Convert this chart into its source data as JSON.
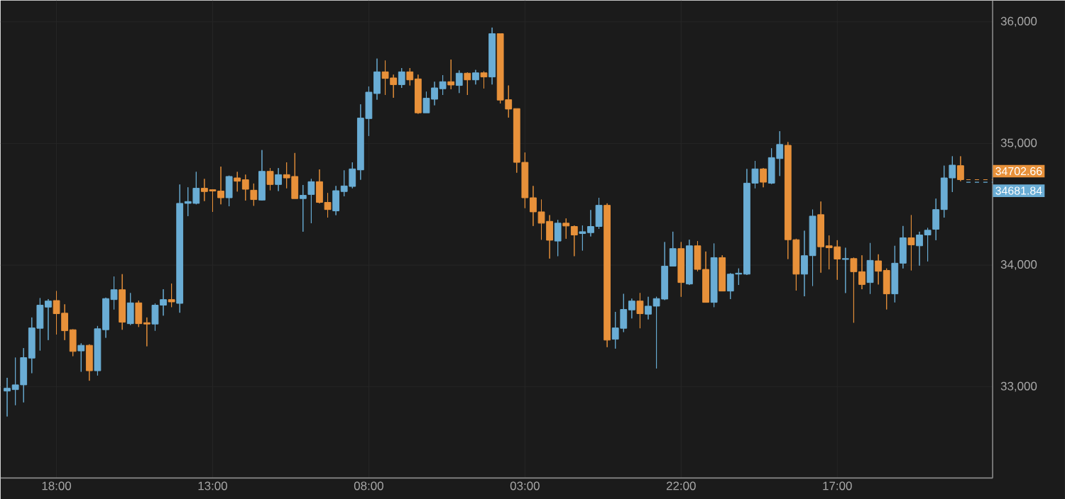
{
  "chart_data": {
    "type": "candlestick",
    "categories": [
      null,
      null,
      null,
      null,
      null,
      null,
      "18:00",
      null,
      null,
      null,
      null,
      null,
      null,
      null,
      null,
      null,
      null,
      null,
      null,
      null,
      null,
      null,
      null,
      null,
      null,
      "13:00",
      null,
      null,
      null,
      null,
      null,
      null,
      null,
      null,
      null,
      null,
      null,
      null,
      null,
      null,
      null,
      null,
      null,
      null,
      "08:00",
      null,
      null,
      null,
      null,
      null,
      null,
      null,
      null,
      null,
      null,
      null,
      null,
      null,
      null,
      null,
      null,
      null,
      null,
      "03:00",
      null,
      null,
      null,
      null,
      null,
      null,
      null,
      null,
      null,
      null,
      null,
      null,
      null,
      null,
      null,
      null,
      null,
      null,
      "22:00",
      null,
      null,
      null,
      null,
      null,
      null,
      null,
      null,
      null,
      null,
      null,
      null,
      null,
      null,
      null,
      null,
      null,
      null,
      "17:00",
      null,
      null,
      null,
      null,
      null,
      null,
      null,
      null,
      null,
      null,
      null,
      null,
      null,
      null,
      null
    ],
    "ohlc": [
      [
        32965,
        33074,
        32756,
        32988
      ],
      [
        32977,
        33240,
        32849,
        33016
      ],
      [
        33016,
        33318,
        32872,
        33240
      ],
      [
        33236,
        33570,
        33112,
        33484
      ],
      [
        33481,
        33729,
        33298,
        33671
      ],
      [
        33655,
        33721,
        33384,
        33705
      ],
      [
        33709,
        33787,
        33430,
        33601
      ],
      [
        33605,
        33678,
        33384,
        33461
      ],
      [
        33469,
        33473,
        33252,
        33291
      ],
      [
        33295,
        33357,
        33124,
        33341
      ],
      [
        33341,
        33349,
        33050,
        33132
      ],
      [
        33132,
        33500,
        33093,
        33477
      ],
      [
        33469,
        33733,
        33403,
        33725
      ],
      [
        33717,
        33907,
        33636,
        33798
      ],
      [
        33798,
        33926,
        33469,
        33531
      ],
      [
        33519,
        33771,
        33508,
        33690
      ],
      [
        33690,
        33709,
        33492,
        33519
      ],
      [
        33527,
        33570,
        33333,
        33516
      ],
      [
        33516,
        33686,
        33461,
        33671
      ],
      [
        33671,
        33802,
        33585,
        33717
      ],
      [
        33717,
        33849,
        33655,
        33698
      ],
      [
        33686,
        34663,
        33609,
        34508
      ],
      [
        34508,
        34640,
        34403,
        34523
      ],
      [
        34508,
        34767,
        34500,
        34632
      ],
      [
        34632,
        34709,
        34527,
        34605
      ],
      [
        34620,
        34624,
        34438,
        34609
      ],
      [
        34609,
        34810,
        34500,
        34554
      ],
      [
        34554,
        34736,
        34484,
        34729
      ],
      [
        34717,
        34767,
        34605,
        34690
      ],
      [
        34702,
        34744,
        34531,
        34624
      ],
      [
        34616,
        34671,
        34488,
        34539
      ],
      [
        34535,
        34946,
        34531,
        34771
      ],
      [
        34771,
        34798,
        34616,
        34663
      ],
      [
        34663,
        34798,
        34609,
        34744
      ],
      [
        34744,
        34845,
        34632,
        34717
      ],
      [
        34729,
        34922,
        34547,
        34547
      ],
      [
        34547,
        34659,
        34275,
        34574
      ],
      [
        34581,
        34709,
        34345,
        34686
      ],
      [
        34686,
        34787,
        34508,
        34516
      ],
      [
        34516,
        34593,
        34391,
        34457
      ],
      [
        34446,
        34651,
        34411,
        34612
      ],
      [
        34605,
        34779,
        34566,
        34651
      ],
      [
        34647,
        34845,
        34632,
        34791
      ],
      [
        34783,
        35322,
        34702,
        35209
      ],
      [
        35205,
        35469,
        35062,
        35422
      ],
      [
        35411,
        35698,
        35360,
        35589
      ],
      [
        35589,
        35682,
        35399,
        35535
      ],
      [
        35539,
        35566,
        35376,
        35484
      ],
      [
        35484,
        35620,
        35457,
        35589
      ],
      [
        35589,
        35620,
        35477,
        35523
      ],
      [
        35531,
        35566,
        35244,
        35252
      ],
      [
        35252,
        35426,
        35252,
        35372
      ],
      [
        35364,
        35508,
        35314,
        35457
      ],
      [
        35450,
        35562,
        35399,
        35508
      ],
      [
        35508,
        35690,
        35446,
        35481
      ],
      [
        35477,
        35601,
        35415,
        35578
      ],
      [
        35578,
        35585,
        35399,
        35523
      ],
      [
        35523,
        35605,
        35485,
        35581
      ],
      [
        35581,
        35593,
        35453,
        35547
      ],
      [
        35547,
        35953,
        35485,
        35903
      ],
      [
        35903,
        35903,
        35329,
        35357
      ],
      [
        35360,
        35477,
        35213,
        35283
      ],
      [
        35287,
        35287,
        34760,
        34845
      ],
      [
        34845,
        34926,
        34469,
        34554
      ],
      [
        34554,
        34651,
        34322,
        34438
      ],
      [
        34438,
        34539,
        34209,
        34345
      ],
      [
        34360,
        34411,
        34054,
        34205
      ],
      [
        34198,
        34372,
        34074,
        34345
      ],
      [
        34345,
        34384,
        34217,
        34322
      ],
      [
        34318,
        34326,
        34074,
        34248
      ],
      [
        34260,
        34326,
        34120,
        34275
      ],
      [
        34267,
        34453,
        34236,
        34318
      ],
      [
        34318,
        34554,
        34298,
        34492
      ],
      [
        34492,
        34508,
        33326,
        33384
      ],
      [
        33391,
        33616,
        33314,
        33484
      ],
      [
        33481,
        33764,
        33450,
        33636
      ],
      [
        33632,
        33725,
        33562,
        33705
      ],
      [
        33705,
        33771,
        33481,
        33601
      ],
      [
        33597,
        33740,
        33554,
        33663
      ],
      [
        33663,
        33740,
        33151,
        33725
      ],
      [
        33721,
        34190,
        33713,
        33992
      ],
      [
        33992,
        34275,
        33992,
        34136
      ],
      [
        34136,
        34190,
        33740,
        33857
      ],
      [
        33845,
        34209,
        33837,
        34159
      ],
      [
        34159,
        34198,
        33950,
        33965
      ],
      [
        33965,
        34112,
        33694,
        33694
      ],
      [
        33694,
        34178,
        33655,
        34062
      ],
      [
        34062,
        34081,
        33787,
        33787
      ],
      [
        33787,
        33934,
        33721,
        33926
      ],
      [
        33926,
        33973,
        33837,
        33934
      ],
      [
        33926,
        34791,
        33919,
        34674
      ],
      [
        34674,
        34857,
        34632,
        34791
      ],
      [
        34791,
        34798,
        34640,
        34682
      ],
      [
        34674,
        34961,
        34667,
        34884
      ],
      [
        34876,
        35101,
        34733,
        34992
      ],
      [
        34985,
        35012,
        34050,
        34209
      ],
      [
        34209,
        34217,
        33791,
        33926
      ],
      [
        33926,
        34283,
        33744,
        34078
      ],
      [
        34078,
        34457,
        33829,
        34403
      ],
      [
        34415,
        34523,
        33938,
        34151
      ],
      [
        34159,
        34244,
        33965,
        34143
      ],
      [
        34151,
        34205,
        33880,
        34050
      ],
      [
        34047,
        34143,
        33771,
        34054
      ],
      [
        34054,
        34062,
        33527,
        33946
      ],
      [
        33946,
        34081,
        33802,
        33841
      ],
      [
        33857,
        34182,
        33764,
        34039
      ],
      [
        34035,
        34089,
        33841,
        33950
      ],
      [
        33957,
        33973,
        33636,
        33764
      ],
      [
        33764,
        34159,
        33694,
        34016
      ],
      [
        34016,
        34322,
        33973,
        34225
      ],
      [
        34225,
        34411,
        33957,
        34167
      ],
      [
        34159,
        34275,
        33996,
        34248
      ],
      [
        34248,
        34306,
        34031,
        34287
      ],
      [
        34295,
        34547,
        34205,
        34457
      ],
      [
        34457,
        34818,
        34391,
        34717
      ],
      [
        34717,
        34895,
        34601,
        34822
      ],
      [
        34818,
        34895,
        34690,
        34703
      ]
    ],
    "colors": [
      "#6aadd5",
      "#6aadd5",
      "#6aadd5",
      "#6aadd5",
      "#6aadd5",
      "#6aadd5",
      "#e8913a",
      "#e8913a",
      "#e8913a",
      "#6aadd5",
      "#e8913a",
      "#6aadd5",
      "#6aadd5",
      "#6aadd5",
      "#e8913a",
      "#6aadd5",
      "#e8913a",
      "#e8913a",
      "#6aadd5",
      "#6aadd5",
      "#e8913a",
      "#6aadd5",
      "#6aadd5",
      "#6aadd5",
      "#e8913a",
      "#e8913a",
      "#e8913a",
      "#6aadd5",
      "#e8913a",
      "#e8913a",
      "#e8913a",
      "#6aadd5",
      "#e8913a",
      "#6aadd5",
      "#e8913a",
      "#e8913a",
      "#6aadd5",
      "#6aadd5",
      "#e8913a",
      "#e8913a",
      "#6aadd5",
      "#6aadd5",
      "#6aadd5",
      "#6aadd5",
      "#6aadd5",
      "#6aadd5",
      "#e8913a",
      "#e8913a",
      "#6aadd5",
      "#e8913a",
      "#e8913a",
      "#6aadd5",
      "#6aadd5",
      "#6aadd5",
      "#e8913a",
      "#6aadd5",
      "#e8913a",
      "#6aadd5",
      "#e8913a",
      "#6aadd5",
      "#e8913a",
      "#e8913a",
      "#e8913a",
      "#e8913a",
      "#e8913a",
      "#e8913a",
      "#e8913a",
      "#6aadd5",
      "#e8913a",
      "#e8913a",
      "#6aadd5",
      "#6aadd5",
      "#6aadd5",
      "#e8913a",
      "#6aadd5",
      "#6aadd5",
      "#6aadd5",
      "#e8913a",
      "#6aadd5",
      "#6aadd5",
      "#6aadd5",
      "#6aadd5",
      "#e8913a",
      "#6aadd5",
      "#e8913a",
      "#e8913a",
      "#6aadd5",
      "#e8913a",
      "#6aadd5",
      "#6aadd5",
      "#6aadd5",
      "#6aadd5",
      "#e8913a",
      "#6aadd5",
      "#6aadd5",
      "#e8913a",
      "#e8913a",
      "#6aadd5",
      "#6aadd5",
      "#e8913a",
      "#e8913a",
      "#e8913a",
      "#6aadd5",
      "#e8913a",
      "#e8913a",
      "#6aadd5",
      "#e8913a",
      "#e8913a",
      "#6aadd5",
      "#6aadd5",
      "#e8913a",
      "#6aadd5",
      "#6aadd5",
      "#6aadd5",
      "#6aadd5",
      "#6aadd5",
      "#e8913a"
    ],
    "ylim": [
      32250,
      36175
    ],
    "yticks": [
      {
        "value": 33000,
        "label": "33,000"
      },
      {
        "value": 34000,
        "label": "34,000"
      },
      {
        "value": 35000,
        "label": "35,000"
      },
      {
        "value": 36000,
        "label": "36,000"
      }
    ],
    "grid": true,
    "ref_lines": [
      {
        "axis": "y",
        "value": 34702.66,
        "label": "34702.66",
        "color": "#e8913a",
        "line_style": "dashed"
      },
      {
        "axis": "y",
        "value": 34681.84,
        "label": "34681.84",
        "color": "#6aadd5",
        "line_style": "dashed"
      }
    ]
  }
}
